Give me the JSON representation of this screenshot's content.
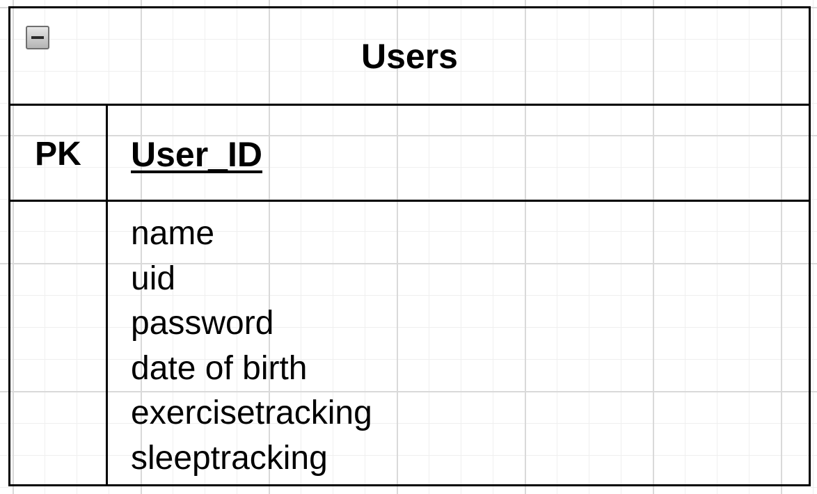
{
  "entity": {
    "title": "Users",
    "primary_key": {
      "label": "PK",
      "field": "User_ID"
    },
    "attributes": [
      "name",
      "uid",
      "password",
      "date of birth",
      "exercisetracking",
      "sleeptracking"
    ],
    "colors": {
      "border": "#000000",
      "grid": "#d9d9d9",
      "background": "#ffffff"
    }
  },
  "icons": {
    "collapse": "minus-square-icon"
  }
}
